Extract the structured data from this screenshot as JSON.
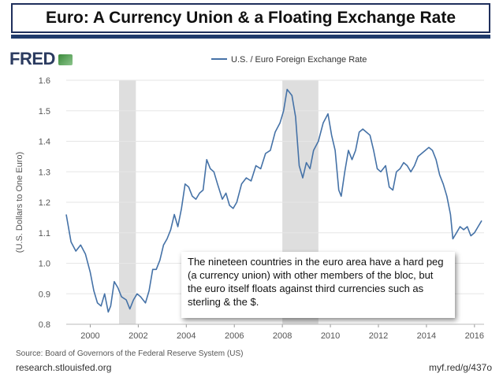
{
  "slide": {
    "title": "Euro: A Currency Union & a Floating Exchange Rate",
    "logo": "FRED",
    "source": "Source: Board of Governors of the Federal Reserve System (US)",
    "site": "research.stlouisfed.org",
    "shortlink": "myf.red/g/437o",
    "annotation": "The nineteen countries in the euro area have a hard peg (a currency union) with other members of the bloc, but the euro itself floats against third currencies such as sterling & the $."
  },
  "chart_data": {
    "type": "line",
    "title": "",
    "legend": "U.S. / Euro Foreign Exchange Rate",
    "legend_position": "top",
    "xlabel": "",
    "ylabel": "(U.S. Dollars to One Euro)",
    "xlim": [
      1999,
      2016.4
    ],
    "ylim": [
      0.8,
      1.6
    ],
    "xticks": [
      2000,
      2002,
      2004,
      2006,
      2008,
      2010,
      2012,
      2014,
      2016
    ],
    "yticks": [
      0.8,
      0.9,
      1.0,
      1.1,
      1.2,
      1.3,
      1.4,
      1.5,
      1.6
    ],
    "xtick_labels": [
      "2000",
      "2002",
      "2004",
      "2006",
      "2008",
      "2010",
      "2012",
      "2014",
      "2016"
    ],
    "ytick_labels": [
      "0.8",
      "0.9",
      "1.0",
      "1.1",
      "1.2",
      "1.3",
      "1.4",
      "1.5",
      "1.6"
    ],
    "grid": true,
    "recessions": [
      [
        2001.2,
        2001.9
      ],
      [
        2008.0,
        2009.5
      ]
    ],
    "colors": {
      "line": "#4572a7",
      "recession": "#dedede",
      "grid": "#e6e6e6"
    },
    "series": [
      {
        "name": "U.S. / Euro Foreign Exchange Rate",
        "x": [
          1999.0,
          1999.2,
          1999.4,
          1999.6,
          1999.8,
          2000.0,
          2000.15,
          2000.3,
          2000.45,
          2000.6,
          2000.75,
          2000.85,
          2001.0,
          2001.15,
          2001.3,
          2001.5,
          2001.65,
          2001.8,
          2001.95,
          2002.1,
          2002.3,
          2002.45,
          2002.6,
          2002.75,
          2002.9,
          2003.05,
          2003.2,
          2003.35,
          2003.5,
          2003.65,
          2003.8,
          2003.95,
          2004.1,
          2004.25,
          2004.4,
          2004.55,
          2004.7,
          2004.85,
          2005.0,
          2005.15,
          2005.3,
          2005.5,
          2005.65,
          2005.8,
          2005.95,
          2006.1,
          2006.3,
          2006.5,
          2006.7,
          2006.9,
          2007.1,
          2007.3,
          2007.5,
          2007.7,
          2007.9,
          2008.05,
          2008.2,
          2008.3,
          2008.4,
          2008.55,
          2008.7,
          2008.85,
          2009.0,
          2009.15,
          2009.3,
          2009.5,
          2009.7,
          2009.9,
          2010.05,
          2010.2,
          2010.35,
          2010.45,
          2010.6,
          2010.75,
          2010.9,
          2011.05,
          2011.2,
          2011.35,
          2011.5,
          2011.65,
          2011.8,
          2011.95,
          2012.1,
          2012.3,
          2012.45,
          2012.6,
          2012.75,
          2012.9,
          2013.05,
          2013.2,
          2013.35,
          2013.5,
          2013.65,
          2013.8,
          2013.95,
          2014.1,
          2014.25,
          2014.4,
          2014.55,
          2014.7,
          2014.85,
          2015.0,
          2015.1,
          2015.25,
          2015.4,
          2015.55,
          2015.7,
          2015.85,
          2016.0,
          2016.15,
          2016.3
        ],
        "y": [
          1.16,
          1.07,
          1.04,
          1.06,
          1.03,
          0.97,
          0.91,
          0.87,
          0.86,
          0.9,
          0.84,
          0.86,
          0.94,
          0.92,
          0.89,
          0.88,
          0.85,
          0.88,
          0.9,
          0.89,
          0.87,
          0.91,
          0.98,
          0.98,
          1.01,
          1.06,
          1.08,
          1.11,
          1.16,
          1.12,
          1.18,
          1.26,
          1.25,
          1.22,
          1.21,
          1.23,
          1.24,
          1.34,
          1.31,
          1.3,
          1.26,
          1.21,
          1.23,
          1.19,
          1.18,
          1.2,
          1.26,
          1.28,
          1.27,
          1.32,
          1.31,
          1.36,
          1.37,
          1.43,
          1.46,
          1.5,
          1.57,
          1.56,
          1.55,
          1.48,
          1.32,
          1.28,
          1.33,
          1.31,
          1.37,
          1.4,
          1.46,
          1.49,
          1.42,
          1.37,
          1.24,
          1.22,
          1.3,
          1.37,
          1.34,
          1.37,
          1.43,
          1.44,
          1.43,
          1.42,
          1.37,
          1.31,
          1.3,
          1.32,
          1.25,
          1.24,
          1.3,
          1.31,
          1.33,
          1.32,
          1.3,
          1.32,
          1.35,
          1.36,
          1.37,
          1.38,
          1.37,
          1.34,
          1.29,
          1.26,
          1.22,
          1.16,
          1.08,
          1.1,
          1.12,
          1.11,
          1.12,
          1.09,
          1.1,
          1.12,
          1.14
        ]
      }
    ]
  }
}
